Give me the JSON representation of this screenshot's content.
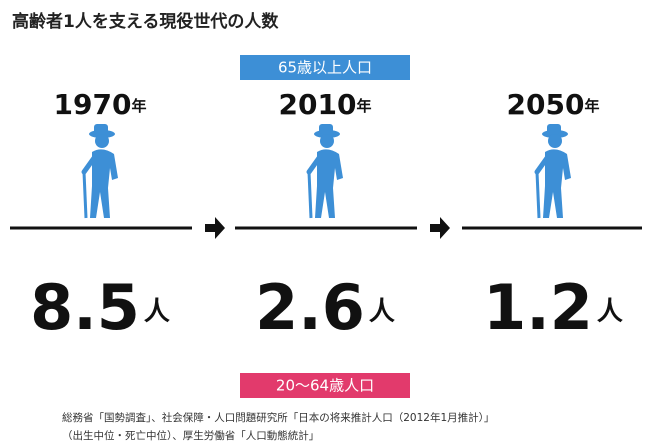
{
  "title": "高齢者1人を支える現役世代の人数",
  "elderly_label": "65歳以上人口",
  "working_label": "20〜64歳人口",
  "panels": [
    {
      "year": "1970",
      "year_unit": "年",
      "value": 8.5,
      "unit": "人"
    },
    {
      "year": "2010",
      "year_unit": "年",
      "value": 2.6,
      "unit": "人"
    },
    {
      "year": "2050",
      "year_unit": "年",
      "value": 1.2,
      "unit": "人"
    }
  ],
  "source": [
    "総務省「国勢調査」、社会保障・人口問題研究所「日本の将来推計人口（2012年1月推計）」",
    "（出生中位・死亡中位）、厚生労働省「人口動態統計」"
  ]
}
